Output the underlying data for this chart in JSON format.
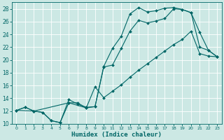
{
  "title": "",
  "xlabel": "Humidex (Indice chaleur)",
  "bg_color": "#cce8e4",
  "line_color": "#006666",
  "grid_color": "#ffffff",
  "xlim": [
    -0.5,
    23.5
  ],
  "ylim": [
    10,
    29
  ],
  "xticks": [
    0,
    1,
    2,
    3,
    4,
    5,
    6,
    7,
    8,
    9,
    10,
    11,
    12,
    13,
    14,
    15,
    16,
    17,
    18,
    19,
    20,
    21,
    22,
    23
  ],
  "yticks": [
    10,
    12,
    14,
    16,
    18,
    20,
    22,
    24,
    26,
    28
  ],
  "line1_x": [
    0,
    1,
    2,
    3,
    4,
    5,
    6,
    7,
    8,
    9,
    10,
    11,
    12,
    13,
    14,
    15,
    16,
    17,
    18,
    19,
    20,
    21,
    22,
    23
  ],
  "line1_y": [
    12.1,
    12.6,
    12.0,
    11.8,
    10.5,
    10.2,
    13.8,
    13.1,
    12.6,
    12.7,
    19.0,
    21.8,
    23.7,
    27.2,
    28.2,
    27.5,
    27.7,
    28.1,
    28.2,
    27.9,
    27.4,
    22.0,
    21.5,
    20.5
  ],
  "line2_x": [
    0,
    1,
    2,
    3,
    4,
    5,
    6,
    7,
    8,
    9,
    10,
    11,
    12,
    13,
    14,
    15,
    16,
    17,
    18,
    19,
    20,
    21,
    22,
    23
  ],
  "line2_y": [
    12.1,
    12.6,
    12.0,
    11.8,
    10.5,
    10.2,
    13.3,
    13.3,
    12.5,
    12.7,
    18.9,
    19.2,
    21.8,
    24.5,
    26.2,
    25.8,
    26.1,
    26.5,
    28.0,
    27.9,
    27.4,
    24.3,
    21.5,
    20.5
  ],
  "line3_x": [
    0,
    2,
    6,
    8,
    9,
    10,
    11,
    12,
    13,
    14,
    15,
    16,
    17,
    18,
    19,
    20,
    21,
    22,
    23
  ],
  "line3_y": [
    12.1,
    12.0,
    13.3,
    12.5,
    15.8,
    14.1,
    15.1,
    16.1,
    17.3,
    18.4,
    19.4,
    20.4,
    21.4,
    22.4,
    23.2,
    24.5,
    21.0,
    20.6,
    20.5
  ]
}
